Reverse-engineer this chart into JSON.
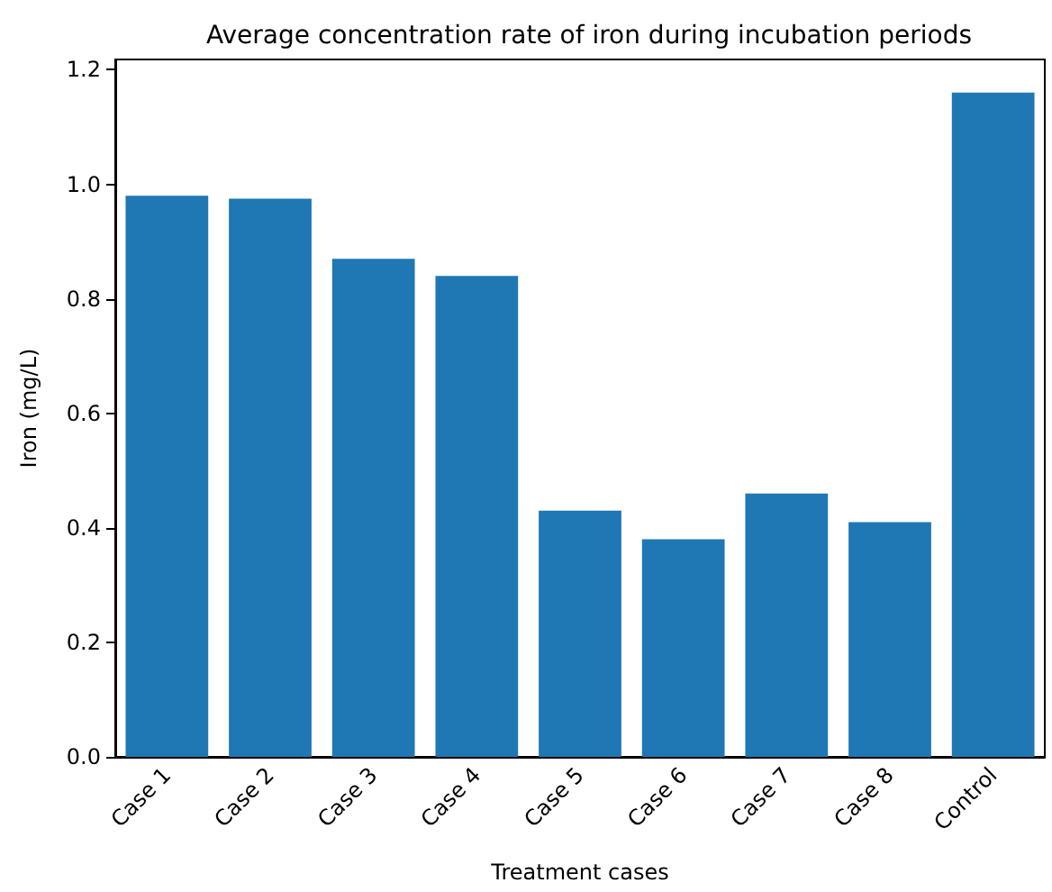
{
  "chart_data": {
    "type": "bar",
    "title": "Average concentration rate of iron during incubation periods",
    "xlabel": "Treatment cases",
    "ylabel": "Iron (mg/L)",
    "categories": [
      "Case 1",
      "Case 2",
      "Case 3",
      "Case 4",
      "Case 5",
      "Case 6",
      "Case 7",
      "Case 8",
      "Control"
    ],
    "values": [
      0.98,
      0.975,
      0.87,
      0.84,
      0.43,
      0.38,
      0.46,
      0.41,
      1.16
    ],
    "color": "#1f77b4",
    "ylim": [
      0,
      1.218
    ],
    "yticks": [
      {
        "value": 0,
        "label": "0.0"
      },
      {
        "value": 0.2,
        "label": "0.2"
      },
      {
        "value": 0.4,
        "label": "0.4"
      },
      {
        "value": 0.6,
        "label": "0.6"
      },
      {
        "value": 0.8,
        "label": "0.8"
      },
      {
        "value": 1.0,
        "label": "1.0"
      },
      {
        "value": 1.2,
        "label": "1.2"
      }
    ],
    "grid": false
  }
}
